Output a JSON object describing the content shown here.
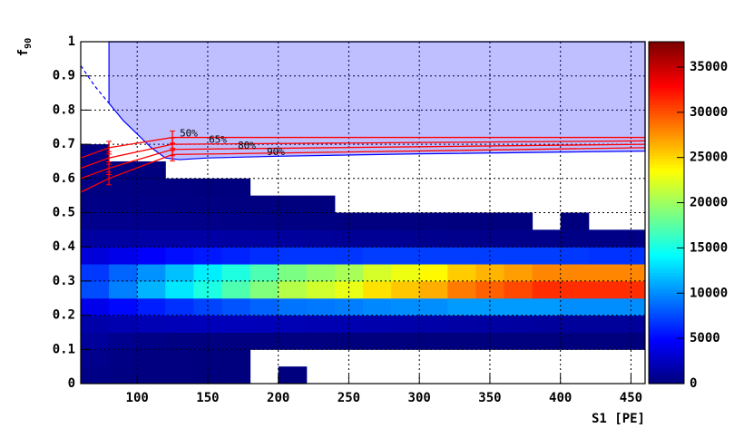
{
  "chart_data": {
    "type": "heatmap",
    "xlabel": "S1 [PE]",
    "ylabel": "f",
    "ylabel_sub": "90",
    "xlim": [
      60,
      460
    ],
    "ylim": [
      0,
      1
    ],
    "zlim": [
      0,
      37800
    ],
    "xticks": [
      100,
      150,
      200,
      250,
      300,
      350,
      400,
      450
    ],
    "yticks": [
      0,
      0.1,
      0.2,
      0.3,
      0.4,
      0.5,
      0.6,
      0.7,
      0.8,
      0.9,
      1
    ],
    "zticks": [
      0,
      5000,
      10000,
      15000,
      20000,
      25000,
      30000,
      35000
    ],
    "grid": true,
    "colormap": [
      "#00007f",
      "#0000ff",
      "#007fff",
      "#00ffff",
      "#7fff7f",
      "#ffff00",
      "#ff7f00",
      "#ff0000",
      "#7f0000"
    ],
    "xbins": [
      60,
      80,
      100,
      120,
      140,
      160,
      180,
      200,
      220,
      240,
      260,
      280,
      300,
      320,
      340,
      360,
      380,
      400,
      420,
      440,
      460
    ],
    "ybins": [
      0,
      0.05,
      0.1,
      0.15,
      0.2,
      0.25,
      0.3,
      0.35,
      0.4,
      0.45,
      0.5,
      0.55,
      0.6,
      0.65,
      0.7
    ],
    "z": [
      [
        300,
        100,
        50,
        20,
        10,
        10,
        0,
        10,
        0,
        0,
        0,
        0,
        0,
        0,
        0,
        0,
        0,
        0,
        0,
        0
      ],
      [
        500,
        200,
        60,
        20,
        10,
        10,
        0,
        0,
        0,
        0,
        0,
        0,
        0,
        0,
        0,
        0,
        0,
        0,
        0,
        0
      ],
      [
        1000,
        600,
        300,
        150,
        80,
        50,
        30,
        20,
        20,
        10,
        10,
        10,
        10,
        10,
        10,
        10,
        10,
        10,
        10,
        10
      ],
      [
        1500,
        1800,
        2000,
        2100,
        2200,
        2200,
        2100,
        2000,
        1900,
        1800,
        1700,
        1600,
        1500,
        1400,
        1300,
        1200,
        1100,
        1000,
        1000,
        1000
      ],
      [
        4000,
        5000,
        5800,
        6500,
        7200,
        7800,
        8400,
        9000,
        9200,
        9400,
        9800,
        10000,
        10000,
        10500,
        10500,
        10500,
        10500,
        10000,
        10000,
        10000
      ],
      [
        7600,
        9500,
        11400,
        13300,
        15200,
        17100,
        19000,
        20900,
        21900,
        22800,
        24700,
        25700,
        26600,
        28500,
        29500,
        30400,
        31400,
        31400,
        31400,
        31400
      ],
      [
        6800,
        8500,
        10200,
        11900,
        13600,
        15300,
        17000,
        18700,
        19600,
        20400,
        22100,
        23000,
        23800,
        25500,
        26400,
        27200,
        28100,
        28100,
        28100,
        28100
      ],
      [
        3400,
        4000,
        4600,
        5200,
        5600,
        6000,
        6400,
        6700,
        6700,
        6700,
        7000,
        7000,
        7000,
        7000,
        7000,
        7000,
        7000,
        6800,
        6600,
        6600
      ],
      [
        1200,
        1300,
        1400,
        1400,
        1400,
        1300,
        1200,
        1100,
        1000,
        900,
        800,
        700,
        600,
        500,
        450,
        400,
        350,
        300,
        300,
        300
      ],
      [
        500,
        500,
        450,
        400,
        350,
        300,
        200,
        150,
        100,
        80,
        60,
        40,
        20,
        10,
        10,
        5,
        0,
        5,
        0,
        0
      ],
      [
        250,
        220,
        180,
        140,
        100,
        60,
        30,
        15,
        5,
        0,
        0,
        0,
        0,
        0,
        0,
        0,
        0,
        0,
        0,
        0
      ],
      [
        120,
        100,
        60,
        30,
        10,
        5,
        0,
        0,
        0,
        0,
        0,
        0,
        0,
        0,
        0,
        0,
        0,
        0,
        0,
        0
      ],
      [
        60,
        40,
        10,
        0,
        0,
        0,
        0,
        0,
        0,
        0,
        0,
        0,
        0,
        0,
        0,
        0,
        0,
        0,
        0,
        0
      ],
      [
        20,
        0,
        0,
        0,
        0,
        0,
        0,
        0,
        0,
        0,
        0,
        0,
        0,
        0,
        0,
        0,
        0,
        0,
        0,
        0
      ]
    ],
    "region": {
      "color": "#0000ff",
      "x": [
        80,
        80,
        90,
        100,
        110,
        120,
        130,
        150,
        200,
        300,
        400,
        460,
        460
      ],
      "y": [
        1,
        0.82,
        0.77,
        0.73,
        0.69,
        0.66,
        0.655,
        0.66,
        0.665,
        0.672,
        0.677,
        0.68,
        1
      ]
    },
    "region_dashed": {
      "x": [
        60,
        70,
        80
      ],
      "y": [
        0.93,
        0.87,
        0.82
      ]
    },
    "series": [
      {
        "name": "50%",
        "color": "#ff0000",
        "x": [
          60,
          80,
          125,
          460
        ],
        "values": [
          0.66,
          0.69,
          0.72,
          0.72
        ]
      },
      {
        "name": "65%",
        "color": "#ff0000",
        "x": [
          60,
          80,
          125,
          460
        ],
        "values": [
          0.63,
          0.66,
          0.7,
          0.71
        ]
      },
      {
        "name": "80%",
        "color": "#ff0000",
        "x": [
          60,
          80,
          125,
          460
        ],
        "values": [
          0.6,
          0.63,
          0.685,
          0.7
        ]
      },
      {
        "name": "90%",
        "color": "#ff0000",
        "x": [
          60,
          80,
          125,
          460
        ],
        "values": [
          0.56,
          0.6,
          0.67,
          0.69
        ]
      }
    ]
  }
}
